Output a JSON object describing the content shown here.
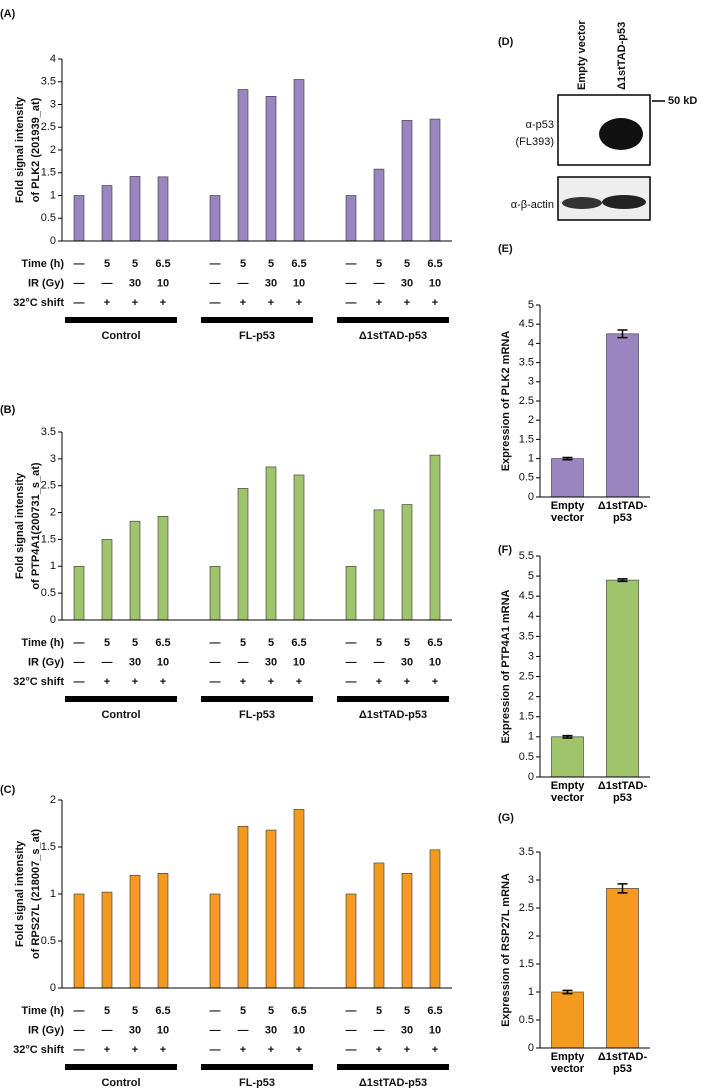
{
  "chart_data": [
    {
      "type": "bar",
      "panel": "(A)",
      "ylabel": [
        "Fold signal intensity",
        "of PLK2 (201939_at)"
      ],
      "color": "#9b85c0",
      "values": [
        1.0,
        1.22,
        1.42,
        1.41,
        1.0,
        3.33,
        3.18,
        3.55,
        1.0,
        1.58,
        2.65,
        2.68
      ],
      "ylim": [
        0,
        4
      ],
      "yticks": [
        0,
        0.5,
        1,
        1.5,
        2,
        2.5,
        3,
        3.5,
        4
      ],
      "condition_rows": [
        {
          "label": "Time (h)",
          "entries": [
            "—",
            "5",
            "5",
            "6.5",
            "—",
            "5",
            "5",
            "6.5",
            "—",
            "5",
            "5",
            "6.5"
          ]
        },
        {
          "label": "IR (Gy)",
          "entries": [
            "—",
            "—",
            "30",
            "10",
            "—",
            "—",
            "30",
            "10",
            "—",
            "—",
            "30",
            "10"
          ]
        },
        {
          "label": "32°C shift",
          "entries": [
            "—",
            "+",
            "+",
            "+",
            "—",
            "+",
            "+",
            "+",
            "—",
            "+",
            "+",
            "+"
          ]
        }
      ],
      "groups": [
        "Control",
        "FL-p53",
        "Δ1stTAD-p53"
      ]
    },
    {
      "type": "bar",
      "panel": "(B)",
      "ylabel": [
        "Fold signal intensity",
        "of PTP4A1(200731_s_at)"
      ],
      "color": "#9fc46b",
      "values": [
        1.0,
        1.5,
        1.84,
        1.93,
        1.0,
        2.45,
        2.85,
        2.7,
        1.0,
        2.05,
        2.15,
        3.07
      ],
      "ylim": [
        0,
        3.5
      ],
      "yticks": [
        0,
        0.5,
        1,
        1.5,
        2,
        2.5,
        3,
        3.5
      ],
      "condition_rows": [
        {
          "label": "Time (h)",
          "entries": [
            "—",
            "5",
            "5",
            "6.5",
            "—",
            "5",
            "5",
            "6.5",
            "—",
            "5",
            "5",
            "6.5"
          ]
        },
        {
          "label": "IR (Gy)",
          "entries": [
            "—",
            "—",
            "30",
            "10",
            "—",
            "—",
            "30",
            "10",
            "—",
            "—",
            "30",
            "10"
          ]
        },
        {
          "label": "32°C shift",
          "entries": [
            "—",
            "+",
            "+",
            "+",
            "—",
            "+",
            "+",
            "+",
            "—",
            "+",
            "+",
            "+"
          ]
        }
      ],
      "groups": [
        "Control",
        "FL-p53",
        "Δ1stTAD-p53"
      ]
    },
    {
      "type": "bar",
      "panel": "(C)",
      "ylabel": [
        "Fold signal intensity",
        "of RPS27L (218007_s_at)"
      ],
      "color": "#f39a1f",
      "values": [
        1.0,
        1.02,
        1.2,
        1.22,
        1.0,
        1.72,
        1.68,
        1.9,
        1.0,
        1.33,
        1.22,
        1.47
      ],
      "ylim": [
        0,
        2
      ],
      "yticks": [
        0,
        0.5,
        1,
        1.5,
        2
      ],
      "condition_rows": [
        {
          "label": "Time (h)",
          "entries": [
            "—",
            "5",
            "5",
            "6.5",
            "—",
            "5",
            "5",
            "6.5",
            "—",
            "5",
            "5",
            "6.5"
          ]
        },
        {
          "label": "IR (Gy)",
          "entries": [
            "—",
            "—",
            "30",
            "10",
            "—",
            "—",
            "30",
            "10",
            "—",
            "—",
            "30",
            "10"
          ]
        },
        {
          "label": "32°C shift",
          "entries": [
            "—",
            "+",
            "+",
            "+",
            "—",
            "+",
            "+",
            "+",
            "—",
            "+",
            "+",
            "+"
          ]
        }
      ],
      "groups": [
        "Control",
        "FL-p53",
        "Δ1stTAD-p53"
      ]
    },
    {
      "type": "bar",
      "panel": "(E)",
      "ylabel": "Expression of PLK2 mRNA",
      "color": "#9b85c0",
      "categories": [
        "Empty vector",
        "Δ1stTAD-p53"
      ],
      "values": [
        1.0,
        4.25
      ],
      "errors": [
        0.03,
        0.1
      ],
      "ylim": [
        0,
        5
      ],
      "yticks": [
        0,
        0.5,
        1,
        1.5,
        2,
        2.5,
        3,
        3.5,
        4,
        4.5,
        5
      ]
    },
    {
      "type": "bar",
      "panel": "(F)",
      "ylabel": "Expression of PTP4A1 mRNA",
      "color": "#9fc46b",
      "categories": [
        "Empty vector",
        "Δ1stTAD-p53"
      ],
      "values": [
        1.0,
        4.9
      ],
      "errors": [
        0.03,
        0.03
      ],
      "ylim": [
        0,
        5.5
      ],
      "yticks": [
        0,
        0.5,
        1,
        1.5,
        2,
        2.5,
        3,
        3.5,
        4,
        4.5,
        5,
        5.5
      ]
    },
    {
      "type": "bar",
      "panel": "(G)",
      "ylabel": "Expression of RSP27L mRNA",
      "color": "#f39a1f",
      "categories": [
        "Empty vector",
        "Δ1stTAD-p53"
      ],
      "values": [
        1.0,
        2.85
      ],
      "errors": [
        0.03,
        0.08
      ],
      "ylim": [
        0,
        3.5
      ],
      "yticks": [
        0,
        0.5,
        1,
        1.5,
        2,
        2.5,
        3,
        3.5
      ]
    }
  ],
  "blot": {
    "panel": "(D)",
    "lanes": [
      "Empty vector",
      "Δ1stTAD-p53"
    ],
    "marker": "50 kD",
    "antibodies": [
      "α-p53",
      "(FL393)",
      "α-β-actin"
    ]
  }
}
